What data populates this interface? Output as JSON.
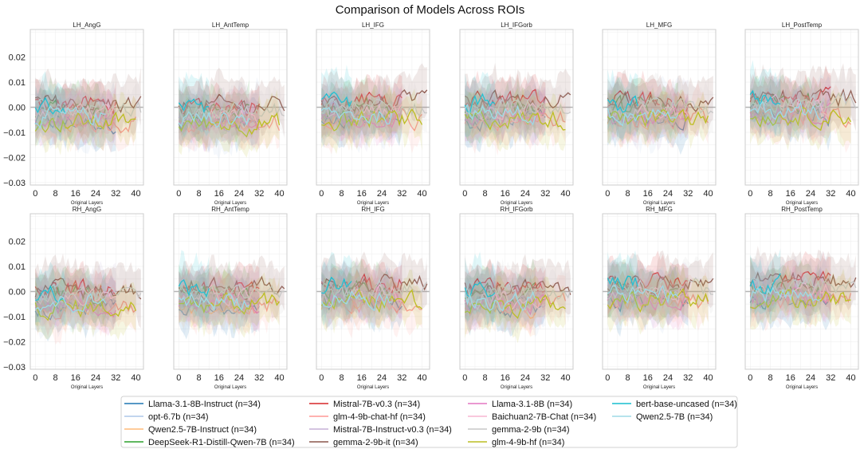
{
  "figure_title": "Comparison of Models Across ROIs",
  "chart_data": {
    "type": "line",
    "title": "Comparison of Models Across ROIs",
    "xlabel": "Original Layers",
    "ylabel": "",
    "xlim": [
      -2,
      43
    ],
    "ylim": [
      -0.031,
      0.031
    ],
    "xticks": [
      0,
      8,
      16,
      24,
      32,
      40
    ],
    "yticks": [
      0.02,
      0.01,
      0.0,
      -0.01,
      -0.02,
      -0.03
    ],
    "ytick_labels": [
      "0.02",
      "0.01",
      "0.00",
      "−0.01",
      "−0.02",
      "−0.03"
    ],
    "reference_line_y": 0.0,
    "panels": [
      {
        "name": "LH_AngG",
        "bias": -0.003
      },
      {
        "name": "LH_AntTemp",
        "bias": -0.004
      },
      {
        "name": "LH_IFG",
        "bias": -0.002
      },
      {
        "name": "LH_IFGorb",
        "bias": -0.001
      },
      {
        "name": "LH_MFG",
        "bias": -0.001
      },
      {
        "name": "LH_PostTemp",
        "bias": 0.001
      },
      {
        "name": "RH_AngG",
        "bias": -0.004
      },
      {
        "name": "RH_AntTemp",
        "bias": -0.002
      },
      {
        "name": "RH_IFG",
        "bias": 0.0
      },
      {
        "name": "RH_IFGorb",
        "bias": -0.003
      },
      {
        "name": "RH_MFG",
        "bias": 0.001
      },
      {
        "name": "RH_PostTemp",
        "bias": 0.002
      }
    ],
    "series": [
      {
        "name": "Llama-3.1-8B-Instruct (n=34)",
        "color": "#1f77b4",
        "layers": 32,
        "level": -0.004,
        "band": 0.008
      },
      {
        "name": "opt-6.7b (n=34)",
        "color": "#aec7e8",
        "layers": 32,
        "level": -0.002,
        "band": 0.01
      },
      {
        "name": "Qwen2.5-7B-Instruct (n=34)",
        "color": "#ffbb78",
        "layers": 28,
        "level": -0.004,
        "band": 0.007
      },
      {
        "name": "DeepSeek-R1-Distill-Qwen-7B (n=34)",
        "color": "#2ca02c",
        "layers": 28,
        "level": 0.001,
        "band": 0.008
      },
      {
        "name": "Mistral-7B-v0.3 (n=34)",
        "color": "#d62728",
        "layers": 32,
        "level": 0.003,
        "band": 0.007
      },
      {
        "name": "glm-4-9b-chat-hf (n=34)",
        "color": "#ff9896",
        "layers": 40,
        "level": -0.004,
        "band": 0.008
      },
      {
        "name": "Mistral-7B-Instruct-v0.3 (n=34)",
        "color": "#c5b0d5",
        "layers": 32,
        "level": -0.001,
        "band": 0.009
      },
      {
        "name": "gemma-2-9b-it (n=34)",
        "color": "#8c564b",
        "layers": 42,
        "level": 0.003,
        "band": 0.009
      },
      {
        "name": "Llama-3.1-8B (n=34)",
        "color": "#e377c2",
        "layers": 32,
        "level": -0.003,
        "band": 0.007
      },
      {
        "name": "Baichuan2-7B-Chat (n=34)",
        "color": "#f7b6d2",
        "layers": 32,
        "level": -0.001,
        "band": 0.007
      },
      {
        "name": "gemma-2-9b (n=34)",
        "color": "#c7c7c7",
        "layers": 42,
        "level": 0.001,
        "band": 0.008
      },
      {
        "name": "glm-4-9b-hf (n=34)",
        "color": "#bcbd22",
        "layers": 40,
        "level": -0.004,
        "band": 0.008
      },
      {
        "name": "bert-base-uncased (n=34)",
        "color": "#17becf",
        "layers": 12,
        "level": 0.002,
        "band": 0.01
      },
      {
        "name": "Qwen2.5-7B (n=34)",
        "color": "#9edae5",
        "layers": 28,
        "level": -0.002,
        "band": 0.007
      }
    ]
  }
}
